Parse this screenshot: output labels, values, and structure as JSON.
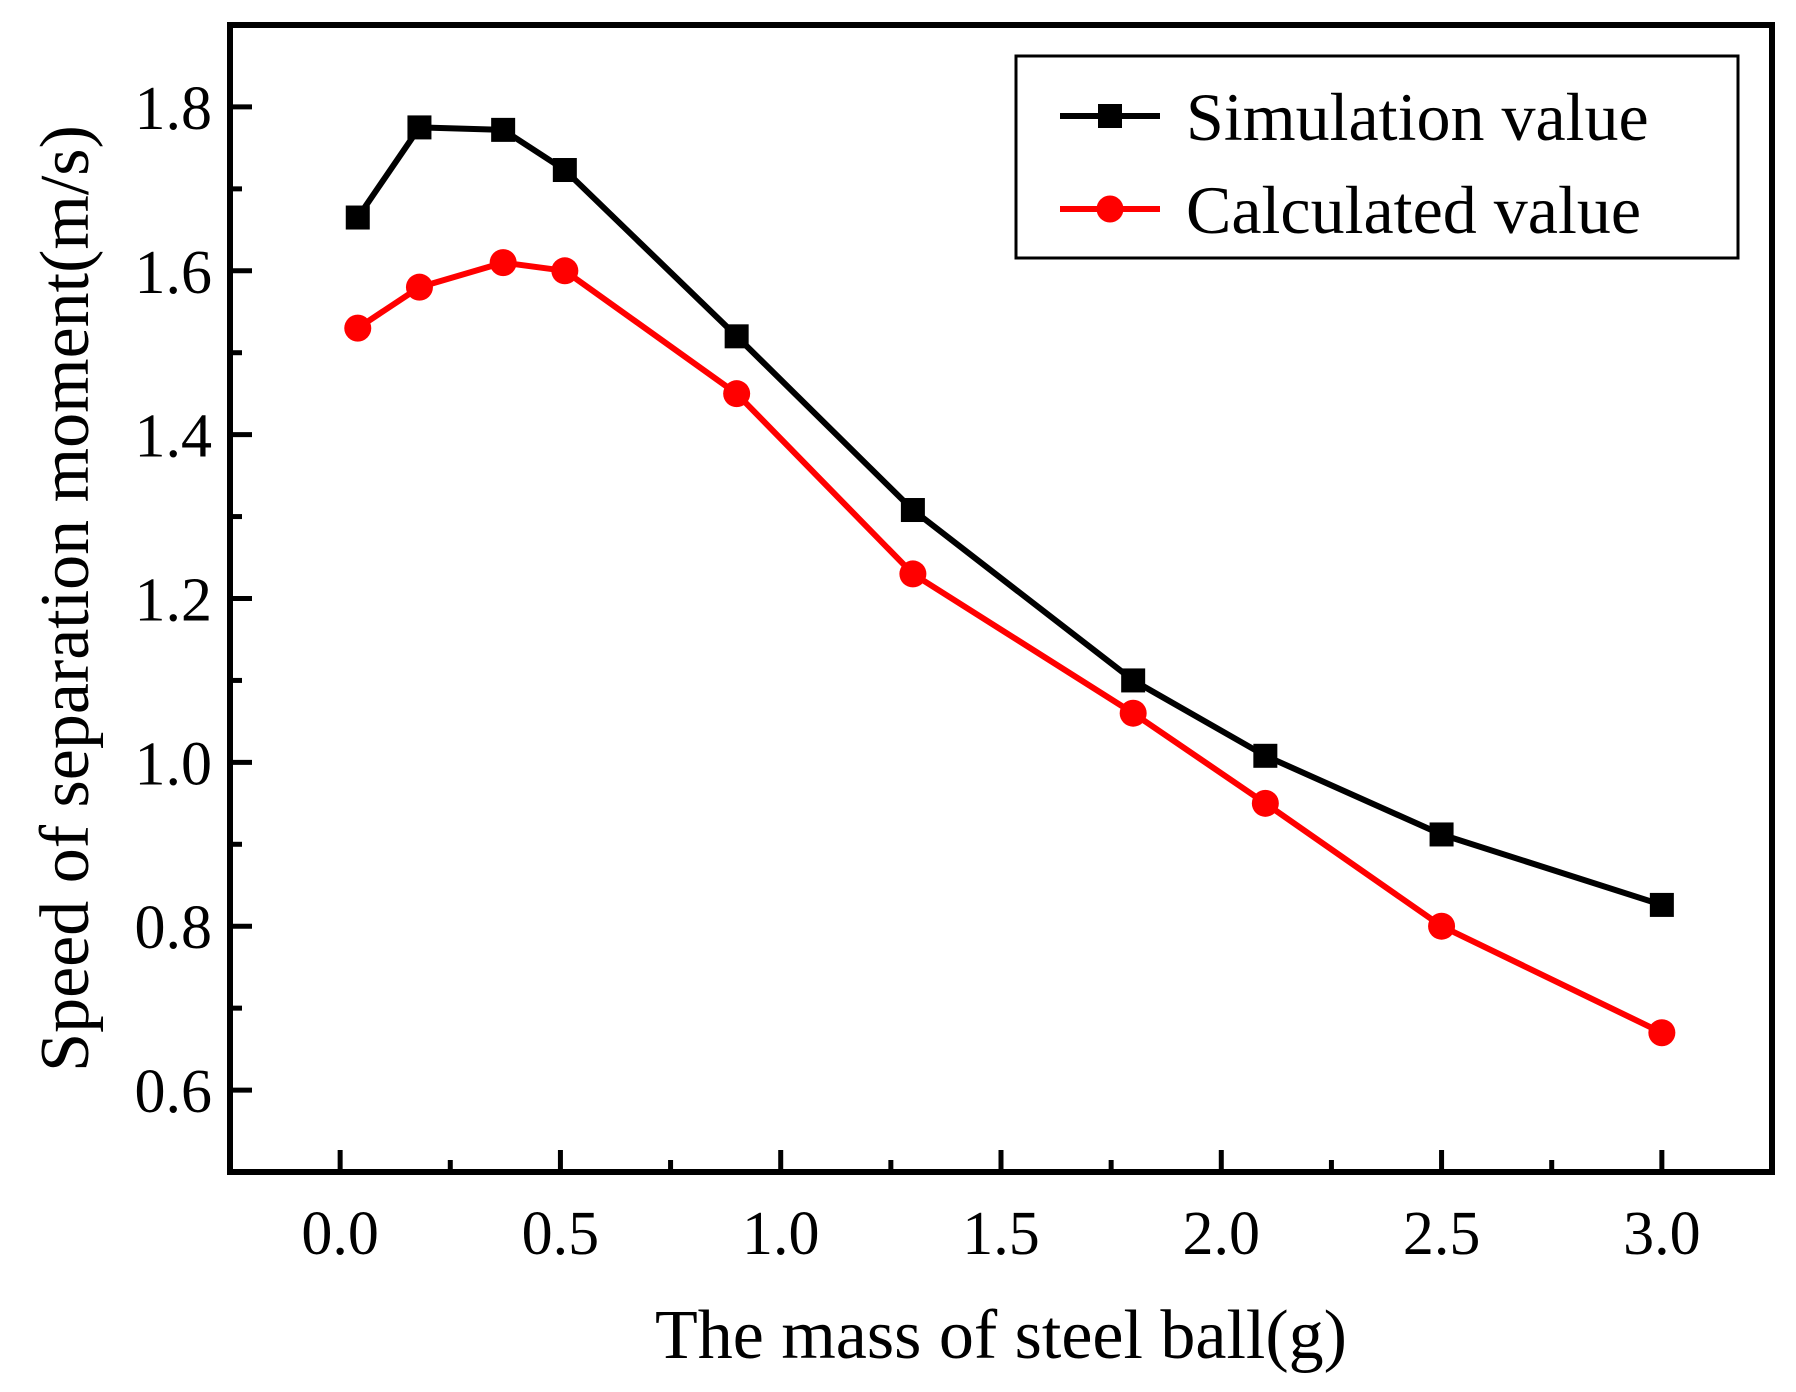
{
  "chart_data": {
    "type": "line",
    "title": "",
    "xlabel": "The mass of steel ball(g)",
    "ylabel": "Speed of separation moment(m/s)",
    "xlim": [
      -0.25,
      3.25
    ],
    "ylim": [
      0.5,
      1.9
    ],
    "xticks": [
      0.0,
      0.5,
      1.0,
      1.5,
      2.0,
      2.5,
      3.0
    ],
    "xtick_labels": [
      "0.0",
      "0.5",
      "1.0",
      "1.5",
      "2.0",
      "2.5",
      "3.0"
    ],
    "yticks": [
      0.6,
      0.8,
      1.0,
      1.2,
      1.4,
      1.6,
      1.8
    ],
    "ytick_labels": [
      "0.6",
      "0.8",
      "1.0",
      "1.2",
      "1.4",
      "1.6",
      "1.8"
    ],
    "x_minor_ticks": [
      0.25,
      0.75,
      1.25,
      1.75,
      2.25,
      2.75
    ],
    "y_minor_ticks": [
      0.5,
      0.7,
      0.9,
      1.1,
      1.3,
      1.5,
      1.7,
      1.9
    ],
    "grid": false,
    "legend_position": "top-right",
    "x": [
      0.04,
      0.18,
      0.37,
      0.51,
      0.9,
      1.3,
      1.8,
      2.1,
      2.5,
      3.0
    ],
    "series": [
      {
        "name": "Simulation value",
        "color": "#000000",
        "marker": "square",
        "values": [
          1.665,
          1.775,
          1.772,
          1.723,
          1.52,
          1.308,
          1.1,
          1.008,
          0.912,
          0.826
        ]
      },
      {
        "name": "Calculated value",
        "color": "#ff0000",
        "marker": "circle",
        "values": [
          1.53,
          1.58,
          1.61,
          1.6,
          1.45,
          1.23,
          1.06,
          0.95,
          0.8,
          0.67
        ]
      }
    ]
  }
}
